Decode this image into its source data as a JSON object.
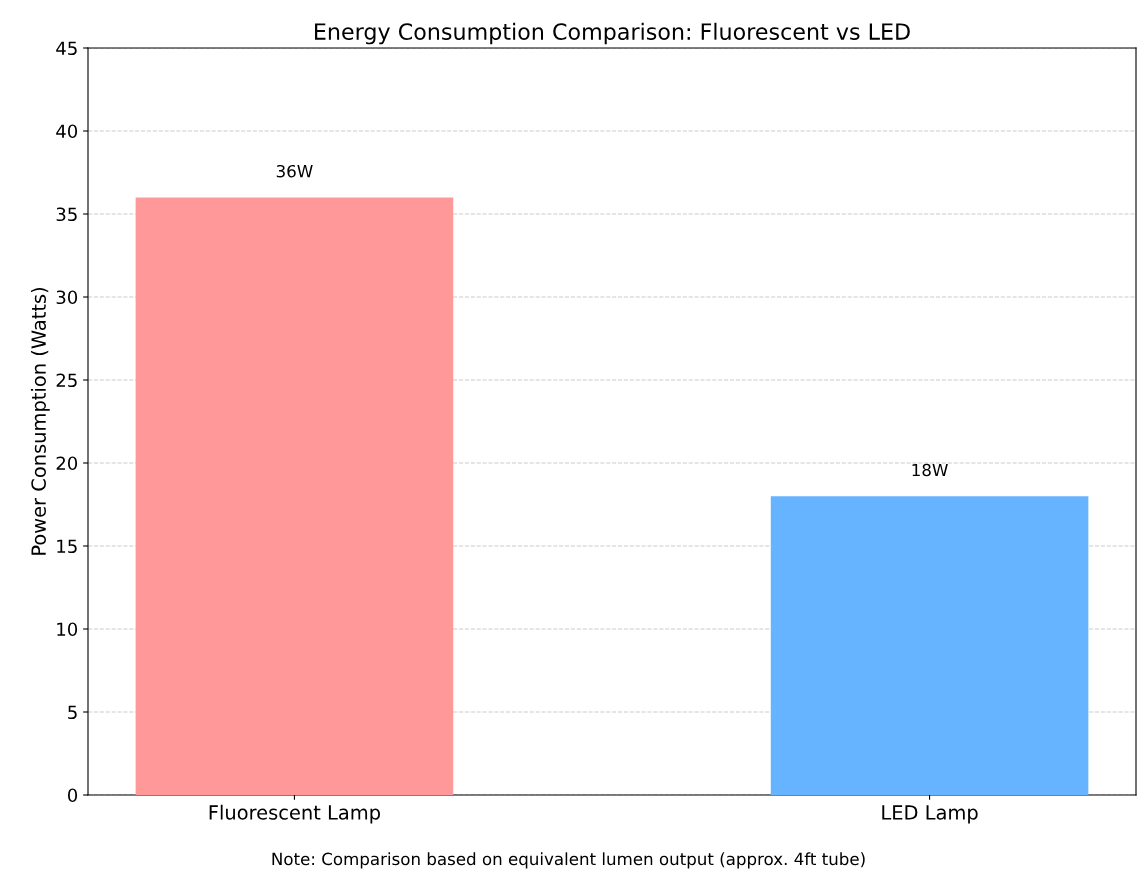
{
  "chart_data": {
    "type": "bar",
    "title": "Energy Consumption Comparison: Fluorescent vs LED",
    "ylabel": "Power Consumption (Watts)",
    "categories": [
      "Fluorescent Lamp",
      "LED Lamp"
    ],
    "values": [
      36,
      18
    ],
    "colors": [
      "#ff9999",
      "#66b3ff"
    ],
    "value_labels": [
      "36W",
      "18W"
    ],
    "ylim": [
      0,
      45
    ],
    "yticks": [
      0,
      5,
      10,
      15,
      20,
      25,
      30,
      35,
      40,
      45
    ],
    "grid": "y",
    "annotations": [
      "Note: Comparison based on equivalent lumen output (approx. 4ft tube)"
    ]
  }
}
